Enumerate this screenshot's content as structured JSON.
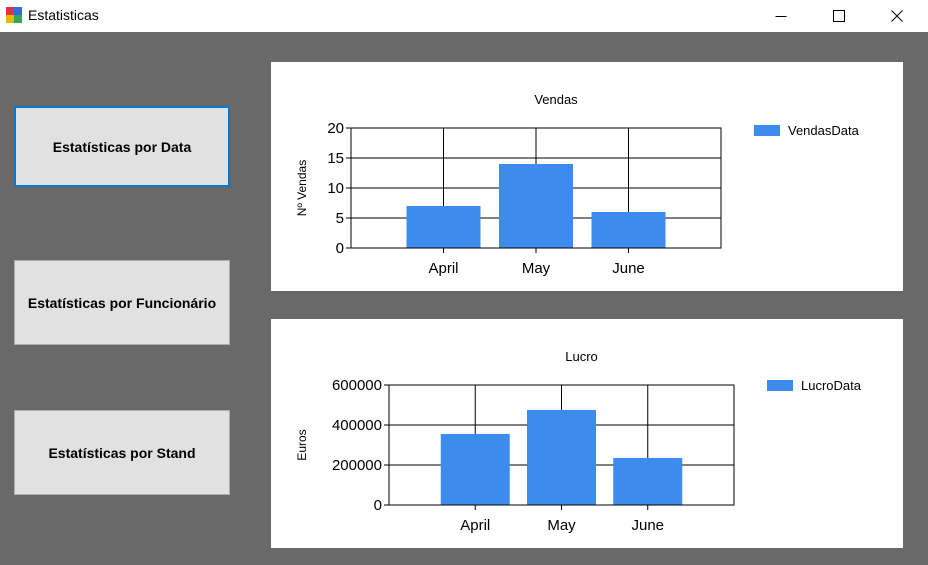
{
  "window": {
    "title": "Estatisticas"
  },
  "buttons": [
    {
      "label": "Estatísticas por Data",
      "active": true
    },
    {
      "label": "Estatísticas por Funcionário",
      "active": false
    },
    {
      "label": "Estatísticas por Stand",
      "active": false
    }
  ],
  "colors": {
    "series": "#3d8ced",
    "background": "#696969"
  },
  "chart_data": [
    {
      "type": "bar",
      "title": "Vendas",
      "ylabel": "Nº Vendas",
      "xlabel": "",
      "categories": [
        "April",
        "May",
        "June"
      ],
      "series": [
        {
          "name": "VendasData",
          "values": [
            7,
            14,
            6
          ]
        }
      ],
      "ylim": [
        0,
        20
      ],
      "yticks": [
        "0",
        "5",
        "10",
        "15",
        "20"
      ],
      "grid": true,
      "legend": "top-right"
    },
    {
      "type": "bar",
      "title": "Lucro",
      "ylabel": "Euros",
      "xlabel": "",
      "categories": [
        "April",
        "May",
        "June"
      ],
      "series": [
        {
          "name": "LucroData",
          "values": [
            355000,
            475000,
            235000
          ]
        }
      ],
      "ylim": [
        0,
        600000
      ],
      "yticks": [
        "0",
        "200000",
        "400000",
        "600000"
      ],
      "grid": true,
      "legend": "top-right"
    }
  ]
}
